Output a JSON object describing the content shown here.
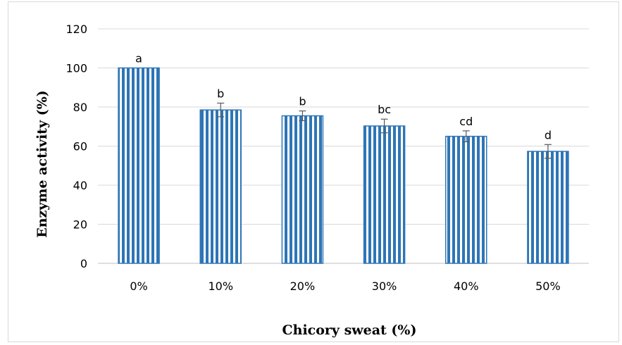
{
  "chart_data": {
    "type": "bar",
    "categories": [
      "0%",
      "10%",
      "20%",
      "30%",
      "40%",
      "50%"
    ],
    "values": [
      100,
      78.5,
      75.5,
      70.3,
      65.0,
      57.3
    ],
    "errors": [
      0,
      3.5,
      2.5,
      3.5,
      2.8,
      3.5
    ],
    "significance_letters": [
      "a",
      "b",
      "b",
      "bc",
      "cd",
      "d"
    ],
    "xlabel": "Chicory sweat (%)",
    "ylabel": "Enzyme activity (%)",
    "ylim": [
      0,
      120
    ],
    "yticks": [
      "0",
      "20",
      "40",
      "60",
      "80",
      "100",
      "120"
    ],
    "grid": true,
    "legend": "none",
    "colors": {
      "bar_stripe": "#2e75b6",
      "bar_gap": "#ffffff",
      "grid": "#d9d9d9",
      "error_bar": "#595959"
    }
  }
}
